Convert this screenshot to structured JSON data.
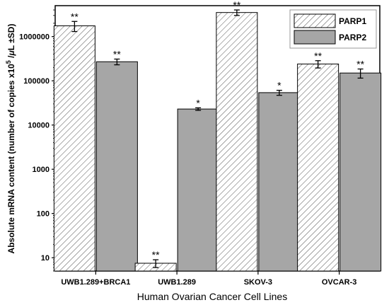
{
  "chart_data": {
    "type": "bar",
    "title": "",
    "xlabel": "Human Ovarian Cancer Cell Lines",
    "ylabel_main": "Absolute mRNA content (number of copies x10",
    "ylabel_sup": "5",
    "ylabel_end": " /",
    "ylabel_mu": "μ",
    "ylabel_tail": "L ±SD)",
    "yscale": "log",
    "ylim": [
      5,
      5000000
    ],
    "yticks": [
      10,
      100,
      1000,
      10000,
      100000,
      1000000
    ],
    "ytick_labels": [
      "10",
      "100",
      "1000",
      "10000",
      "100000",
      "1000000"
    ],
    "categories": [
      "UWB1.289+BRCA1",
      "UWB1.289",
      "SKOV-3",
      "OVCAR-3"
    ],
    "series": [
      {
        "name": "PARP1",
        "values": [
          1750000,
          7.5,
          3500000,
          240000
        ],
        "errors": [
          450000,
          1.5,
          500000,
          45000
        ],
        "significance": [
          "**",
          "**",
          "**",
          "**"
        ],
        "fill": "hatched",
        "color": "#ffffff"
      },
      {
        "name": "PARP2",
        "values": [
          270000,
          23000,
          54000,
          150000
        ],
        "errors": [
          40000,
          1500,
          7000,
          35000
        ],
        "significance": [
          "**",
          "*",
          "*",
          "**"
        ],
        "fill": "solid",
        "color": "#a6a6a6"
      }
    ],
    "legend_position": "top-right",
    "grid": false
  }
}
